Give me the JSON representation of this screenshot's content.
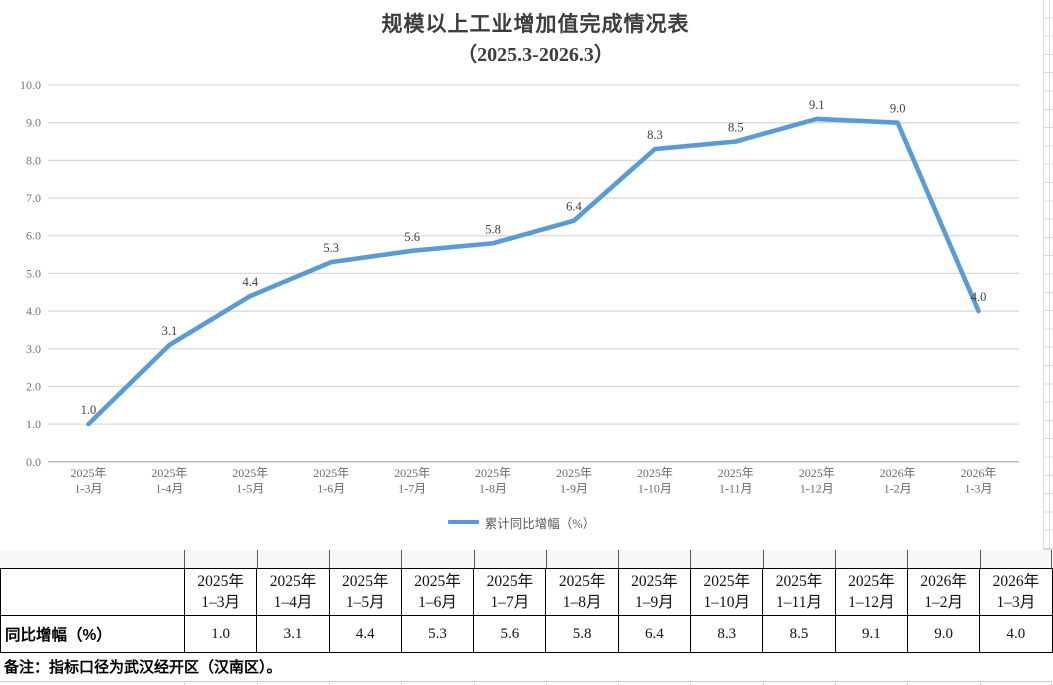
{
  "chart": {
    "title_line1": "规模以上工业增加值完成情况表",
    "title_line2": "（2025.3-2026.3）",
    "legend_label": "累计同比增幅（%）",
    "line_color": "#5B9BD5",
    "gridline_color": "#D9D9D9",
    "axis_text_color": "#737373",
    "data_label_color": "#404040"
  },
  "chart_data": {
    "type": "line",
    "title": "规模以上工业增加值完成情况表（2025.3-2026.3）",
    "categories": [
      "2025年\n1-3月",
      "2025年\n1-4月",
      "2025年\n1-5月",
      "2025年\n1-6月",
      "2025年\n1-7月",
      "2025年\n1-8月",
      "2025年\n1-9月",
      "2025年\n1-10月",
      "2025年\n1-11月",
      "2025年\n1-12月",
      "2026年\n1-2月",
      "2026年\n1-3月"
    ],
    "series": [
      {
        "name": "累计同比增幅（%）",
        "values": [
          1.0,
          3.1,
          4.4,
          5.3,
          5.6,
          5.8,
          6.4,
          8.3,
          8.5,
          9.1,
          9.0,
          4.0
        ]
      }
    ],
    "ylim": [
      0,
      10
    ],
    "ytick_step": 1.0,
    "ytick_labels": [
      "0.0",
      "1.0",
      "2.0",
      "3.0",
      "4.0",
      "5.0",
      "6.0",
      "7.0",
      "8.0",
      "9.0",
      "10.0"
    ],
    "grid": true,
    "data_labels": true,
    "legend_position": "bottom",
    "xlabel": "",
    "ylabel": ""
  },
  "table": {
    "columns": [
      "2025年\n1–3月",
      "2025年\n1–4月",
      "2025年\n1–5月",
      "2025年\n1–6月",
      "2025年\n1–7月",
      "2025年\n1–8月",
      "2025年\n1–9月",
      "2025年\n1–10月",
      "2025年\n1–11月",
      "2025年\n1–12月",
      "2026年\n1–2月",
      "2026年\n1–3月"
    ],
    "row_label": "同比增幅（%）",
    "values": [
      "1.0",
      "3.1",
      "4.4",
      "5.3",
      "5.6",
      "5.8",
      "6.4",
      "8.3",
      "8.5",
      "9.1",
      "9.0",
      "4.0"
    ],
    "note": "备注：指标口径为武汉经开区（汉南区）。"
  },
  "accents": {
    "selection_green": "#1E9E62"
  }
}
